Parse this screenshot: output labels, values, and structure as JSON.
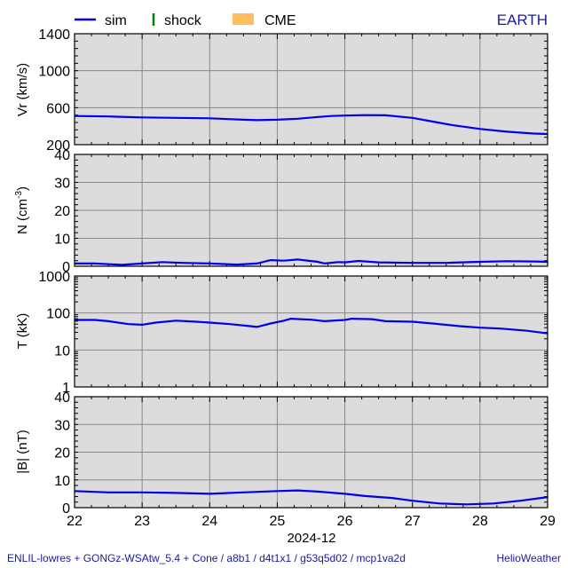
{
  "header": {
    "legend": [
      {
        "label": "sim",
        "color": "#0000ee",
        "symbol": "line"
      },
      {
        "label": "shock",
        "color": "#008000",
        "symbol": "tick"
      },
      {
        "label": "CME",
        "color": "#ffbf5f",
        "symbol": "box"
      }
    ],
    "location": "EARTH"
  },
  "footer": {
    "left": "ENLIL-lowres + GONGz-WSAtw_5.4 + Cone / a8b1 / d4t1x1 / g53q5d02 / mcp1va2d",
    "right": "HelioWeather"
  },
  "colors": {
    "sim": "#0000ee",
    "panel_bg": "#dcdcdc",
    "grid": "#888888",
    "text_blue": "#1a1aa0"
  },
  "chart_data": [
    {
      "type": "line",
      "ylabel": "Vr (km/s)",
      "ylim": [
        200,
        1400
      ],
      "ytick_labels": [
        "200",
        "600",
        "1000",
        "1400"
      ],
      "grid": true,
      "series": [
        {
          "name": "sim",
          "x": [
            22.0,
            22.5,
            23.0,
            23.5,
            24.0,
            24.5,
            24.7,
            25.0,
            25.3,
            25.6,
            25.8,
            26.0,
            26.3,
            26.6,
            27.0,
            27.3,
            27.6,
            28.0,
            28.4,
            28.8,
            29.0
          ],
          "y": [
            510,
            505,
            495,
            490,
            485,
            470,
            465,
            470,
            480,
            500,
            510,
            515,
            520,
            518,
            490,
            450,
            410,
            370,
            340,
            320,
            315
          ]
        }
      ]
    },
    {
      "type": "line",
      "ylabel": "N (cm-3)",
      "ylim": [
        0,
        40
      ],
      "ytick_labels": [
        "0",
        "10",
        "20",
        "30",
        "40"
      ],
      "grid": true,
      "series": [
        {
          "name": "sim",
          "x": [
            22.0,
            22.3,
            22.7,
            23.0,
            23.3,
            23.6,
            24.0,
            24.4,
            24.7,
            24.9,
            25.1,
            25.3,
            25.6,
            25.7,
            25.9,
            26.0,
            26.2,
            26.5,
            27.0,
            27.5,
            28.0,
            28.4,
            28.8,
            29.0
          ],
          "y": [
            1.0,
            1.0,
            0.5,
            1.0,
            1.5,
            1.2,
            1.0,
            0.6,
            1.0,
            2.2,
            2.0,
            2.4,
            1.6,
            1.0,
            1.5,
            1.4,
            1.9,
            1.4,
            1.2,
            1.2,
            1.6,
            1.8,
            1.7,
            1.6
          ]
        }
      ]
    },
    {
      "type": "line",
      "ylabel": "T (kK)",
      "yscale": "log",
      "ylim": [
        1,
        1000
      ],
      "ytick_labels": [
        "1",
        "10",
        "100",
        "1000"
      ],
      "grid": true,
      "series": [
        {
          "name": "sim",
          "x": [
            22.0,
            22.3,
            22.5,
            22.8,
            23.0,
            23.2,
            23.5,
            23.8,
            24.0,
            24.3,
            24.6,
            24.7,
            24.9,
            25.1,
            25.2,
            25.5,
            25.7,
            26.0,
            26.1,
            26.4,
            26.6,
            27.0,
            27.3,
            27.7,
            28.0,
            28.3,
            28.7,
            29.0
          ],
          "y": [
            65,
            65,
            60,
            50,
            48,
            55,
            62,
            58,
            55,
            50,
            44,
            42,
            52,
            62,
            70,
            66,
            60,
            65,
            70,
            68,
            60,
            58,
            52,
            44,
            40,
            38,
            33,
            28
          ]
        }
      ]
    },
    {
      "type": "line",
      "ylabel": "|B| (nT)",
      "ylim": [
        0,
        40
      ],
      "ytick_labels": [
        "0",
        "10",
        "20",
        "30",
        "40"
      ],
      "xlabel": "2024-12",
      "xlim": [
        22,
        29
      ],
      "xtick_labels": [
        "22",
        "23",
        "24",
        "25",
        "26",
        "27",
        "28",
        "29"
      ],
      "grid": true,
      "series": [
        {
          "name": "sim",
          "x": [
            22.0,
            22.5,
            23.0,
            23.5,
            24.0,
            24.5,
            25.0,
            25.3,
            25.6,
            26.0,
            26.3,
            26.7,
            27.0,
            27.4,
            27.8,
            28.2,
            28.6,
            29.0
          ],
          "y": [
            6.0,
            5.5,
            5.5,
            5.3,
            5.0,
            5.5,
            6.0,
            6.2,
            5.8,
            5.0,
            4.2,
            3.5,
            2.5,
            1.5,
            1.2,
            1.5,
            2.5,
            3.8
          ]
        }
      ]
    }
  ]
}
